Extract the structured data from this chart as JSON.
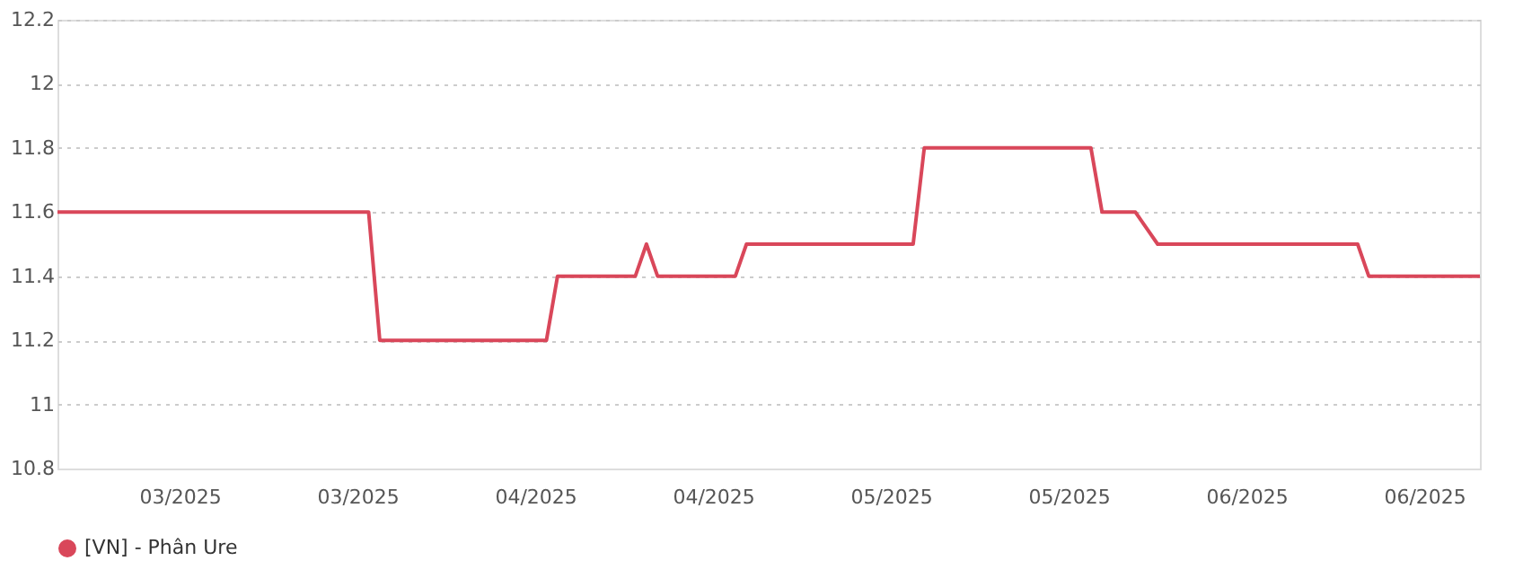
{
  "chart_data": {
    "type": "line",
    "x": [
      "2025-02-22",
      "2025-03-22",
      "2025-03-23",
      "2025-04-07",
      "2025-04-08",
      "2025-04-15",
      "2025-04-16",
      "2025-04-17",
      "2025-04-24",
      "2025-04-25",
      "2025-05-10",
      "2025-05-11",
      "2025-05-26",
      "2025-05-27",
      "2025-05-30",
      "2025-06-01",
      "2025-06-19",
      "2025-06-20",
      "2025-06-30"
    ],
    "series": [
      {
        "name": "[VN] - Phân Ure",
        "color": "#d9475a",
        "values": [
          11.6,
          11.6,
          11.2,
          11.2,
          11.4,
          11.4,
          11.5,
          11.4,
          11.4,
          11.5,
          11.5,
          11.8,
          11.8,
          11.6,
          11.6,
          11.5,
          11.5,
          11.4,
          11.4
        ]
      }
    ],
    "xlim": [
      "2025-02-22",
      "2025-06-30"
    ],
    "xticks": [
      {
        "value": "2025-03-05",
        "label": "03/2025"
      },
      {
        "value": "2025-03-21",
        "label": "03/2025"
      },
      {
        "value": "2025-04-06",
        "label": "04/2025"
      },
      {
        "value": "2025-04-22",
        "label": "04/2025"
      },
      {
        "value": "2025-05-08",
        "label": "05/2025"
      },
      {
        "value": "2025-05-24",
        "label": "05/2025"
      },
      {
        "value": "2025-06-09",
        "label": "06/2025"
      },
      {
        "value": "2025-06-25",
        "label": "06/2025"
      }
    ],
    "ylim": [
      10.8,
      12.2
    ],
    "yticks": [
      10.8,
      11,
      11.2,
      11.4,
      11.6,
      11.8,
      12,
      12.2
    ],
    "grid": "y",
    "legend": "bottom",
    "marker": "none",
    "line_style": "solid"
  }
}
